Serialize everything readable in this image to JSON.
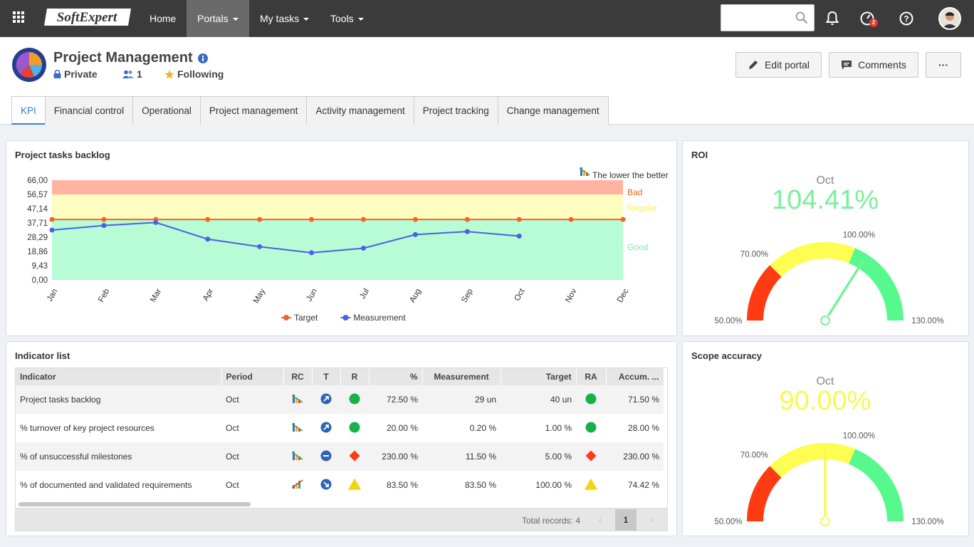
{
  "nav": {
    "logo": "SoftExpert",
    "items": [
      {
        "label": "Home",
        "dropdown": false
      },
      {
        "label": "Portals",
        "dropdown": true
      },
      {
        "label": "My tasks",
        "dropdown": true
      },
      {
        "label": "Tools",
        "dropdown": true
      }
    ],
    "search_value": "",
    "notification_badge": "2"
  },
  "portal": {
    "title": "Project Management",
    "privacy": "Private",
    "members": "1",
    "following": "Following"
  },
  "actions": {
    "edit": "Edit portal",
    "comments": "Comments",
    "more": "···"
  },
  "tabs": [
    "KPI",
    "Financial control",
    "Operational",
    "Project management",
    "Activity management",
    "Project tracking",
    "Change management"
  ],
  "backlog": {
    "title": "Project tasks backlog",
    "note": "The lower the better"
  },
  "chart_data": [
    {
      "type": "line",
      "title": "Project tasks backlog",
      "categories": [
        "Jan",
        "Feb",
        "Mar",
        "Apr",
        "May",
        "Jun",
        "Jul",
        "Aug",
        "Sep",
        "Oct",
        "Nov",
        "Dec"
      ],
      "y_ticks": [
        "66,00",
        "56,57",
        "47,14",
        "37,71",
        "28,29",
        "18,86",
        "9,43",
        "0,00"
      ],
      "ylim": [
        0,
        66
      ],
      "bands": [
        {
          "name": "Bad",
          "from": 56.57,
          "to": 66,
          "color": "#ffb3a0",
          "label_color": "#e8621a"
        },
        {
          "name": "Regular",
          "from": 40,
          "to": 56.57,
          "color": "#fffdc0",
          "label_color": "#f5ef5b"
        },
        {
          "name": "Good",
          "from": 0,
          "to": 40,
          "color": "#b7fcd4",
          "label_color": "#7fe8a4"
        }
      ],
      "series": [
        {
          "name": "Target",
          "color": "#f26522",
          "values": [
            40,
            40,
            40,
            40,
            40,
            40,
            40,
            40,
            40,
            40,
            40,
            40
          ]
        },
        {
          "name": "Measurement",
          "color": "#4c5fe8",
          "values": [
            33,
            36,
            38,
            27,
            22,
            18,
            21,
            30,
            32,
            29,
            null,
            null
          ]
        }
      ],
      "legend": "bottom"
    },
    {
      "type": "gauge",
      "title": "ROI",
      "period": "Oct",
      "value_label": "104.41%",
      "value": 104.41,
      "range": [
        50,
        130
      ],
      "value_color": "#7af09a",
      "ticks": [
        "50.00%",
        "70.00%",
        "100.00%",
        "130.00%"
      ],
      "bands": [
        {
          "from": 50,
          "to": 70,
          "color": "#ff3b13"
        },
        {
          "from": 70,
          "to": 100,
          "color": "#fdfd52"
        },
        {
          "from": 100,
          "to": 130,
          "color": "#57f98e"
        }
      ]
    },
    {
      "type": "gauge",
      "title": "Scope accuracy",
      "period": "Oct",
      "value_label": "90.00%",
      "value": 90,
      "range": [
        50,
        130
      ],
      "value_color": "#f8f84e",
      "ticks": [
        "50.00%",
        "70.00%",
        "100.00%",
        "130.00%"
      ],
      "bands": [
        {
          "from": 50,
          "to": 70,
          "color": "#ff3b13"
        },
        {
          "from": 70,
          "to": 100,
          "color": "#fdfd52"
        },
        {
          "from": 100,
          "to": 130,
          "color": "#57f98e"
        }
      ]
    }
  ],
  "indicators": {
    "title": "Indicator list",
    "columns": [
      "Indicator",
      "Period",
      "RC",
      "T",
      "R",
      "%",
      "Measurement",
      "Target",
      "RA",
      "Accum. ..."
    ],
    "rows": [
      {
        "name": "Project tasks backlog",
        "period": "Oct",
        "rc": "lower-better-icon",
        "t": "trend-up-icon",
        "r": "green-circle-icon",
        "pct": "72.50 %",
        "measurement": "29 un",
        "target": "40 un",
        "ra": "green-circle-icon",
        "accum": "71.50 %"
      },
      {
        "name": "% turnover of key project resources",
        "period": "Oct",
        "rc": "lower-better-icon",
        "t": "trend-up-icon",
        "r": "green-circle-icon",
        "pct": "20.00 %",
        "measurement": "0.20 %",
        "target": "1.00 %",
        "ra": "green-circle-icon",
        "accum": "28.00 %"
      },
      {
        "name": "% of unsuccessful milestones",
        "period": "Oct",
        "rc": "lower-better-icon",
        "t": "trend-stable-icon",
        "r": "red-diamond-icon",
        "pct": "230.00 %",
        "measurement": "11.50 %",
        "target": "5.00 %",
        "ra": "red-diamond-icon",
        "accum": "230.00 %"
      },
      {
        "name": "% of documented and validated requirements",
        "period": "Oct",
        "rc": "higher-better-icon",
        "t": "trend-down-icon",
        "r": "yellow-triangle-icon",
        "pct": "83.50 %",
        "measurement": "83.50 %",
        "target": "100.00 %",
        "ra": "yellow-triangle-icon",
        "accum": "74.42 %"
      }
    ],
    "total_records": "Total records: 4",
    "page": "1"
  }
}
